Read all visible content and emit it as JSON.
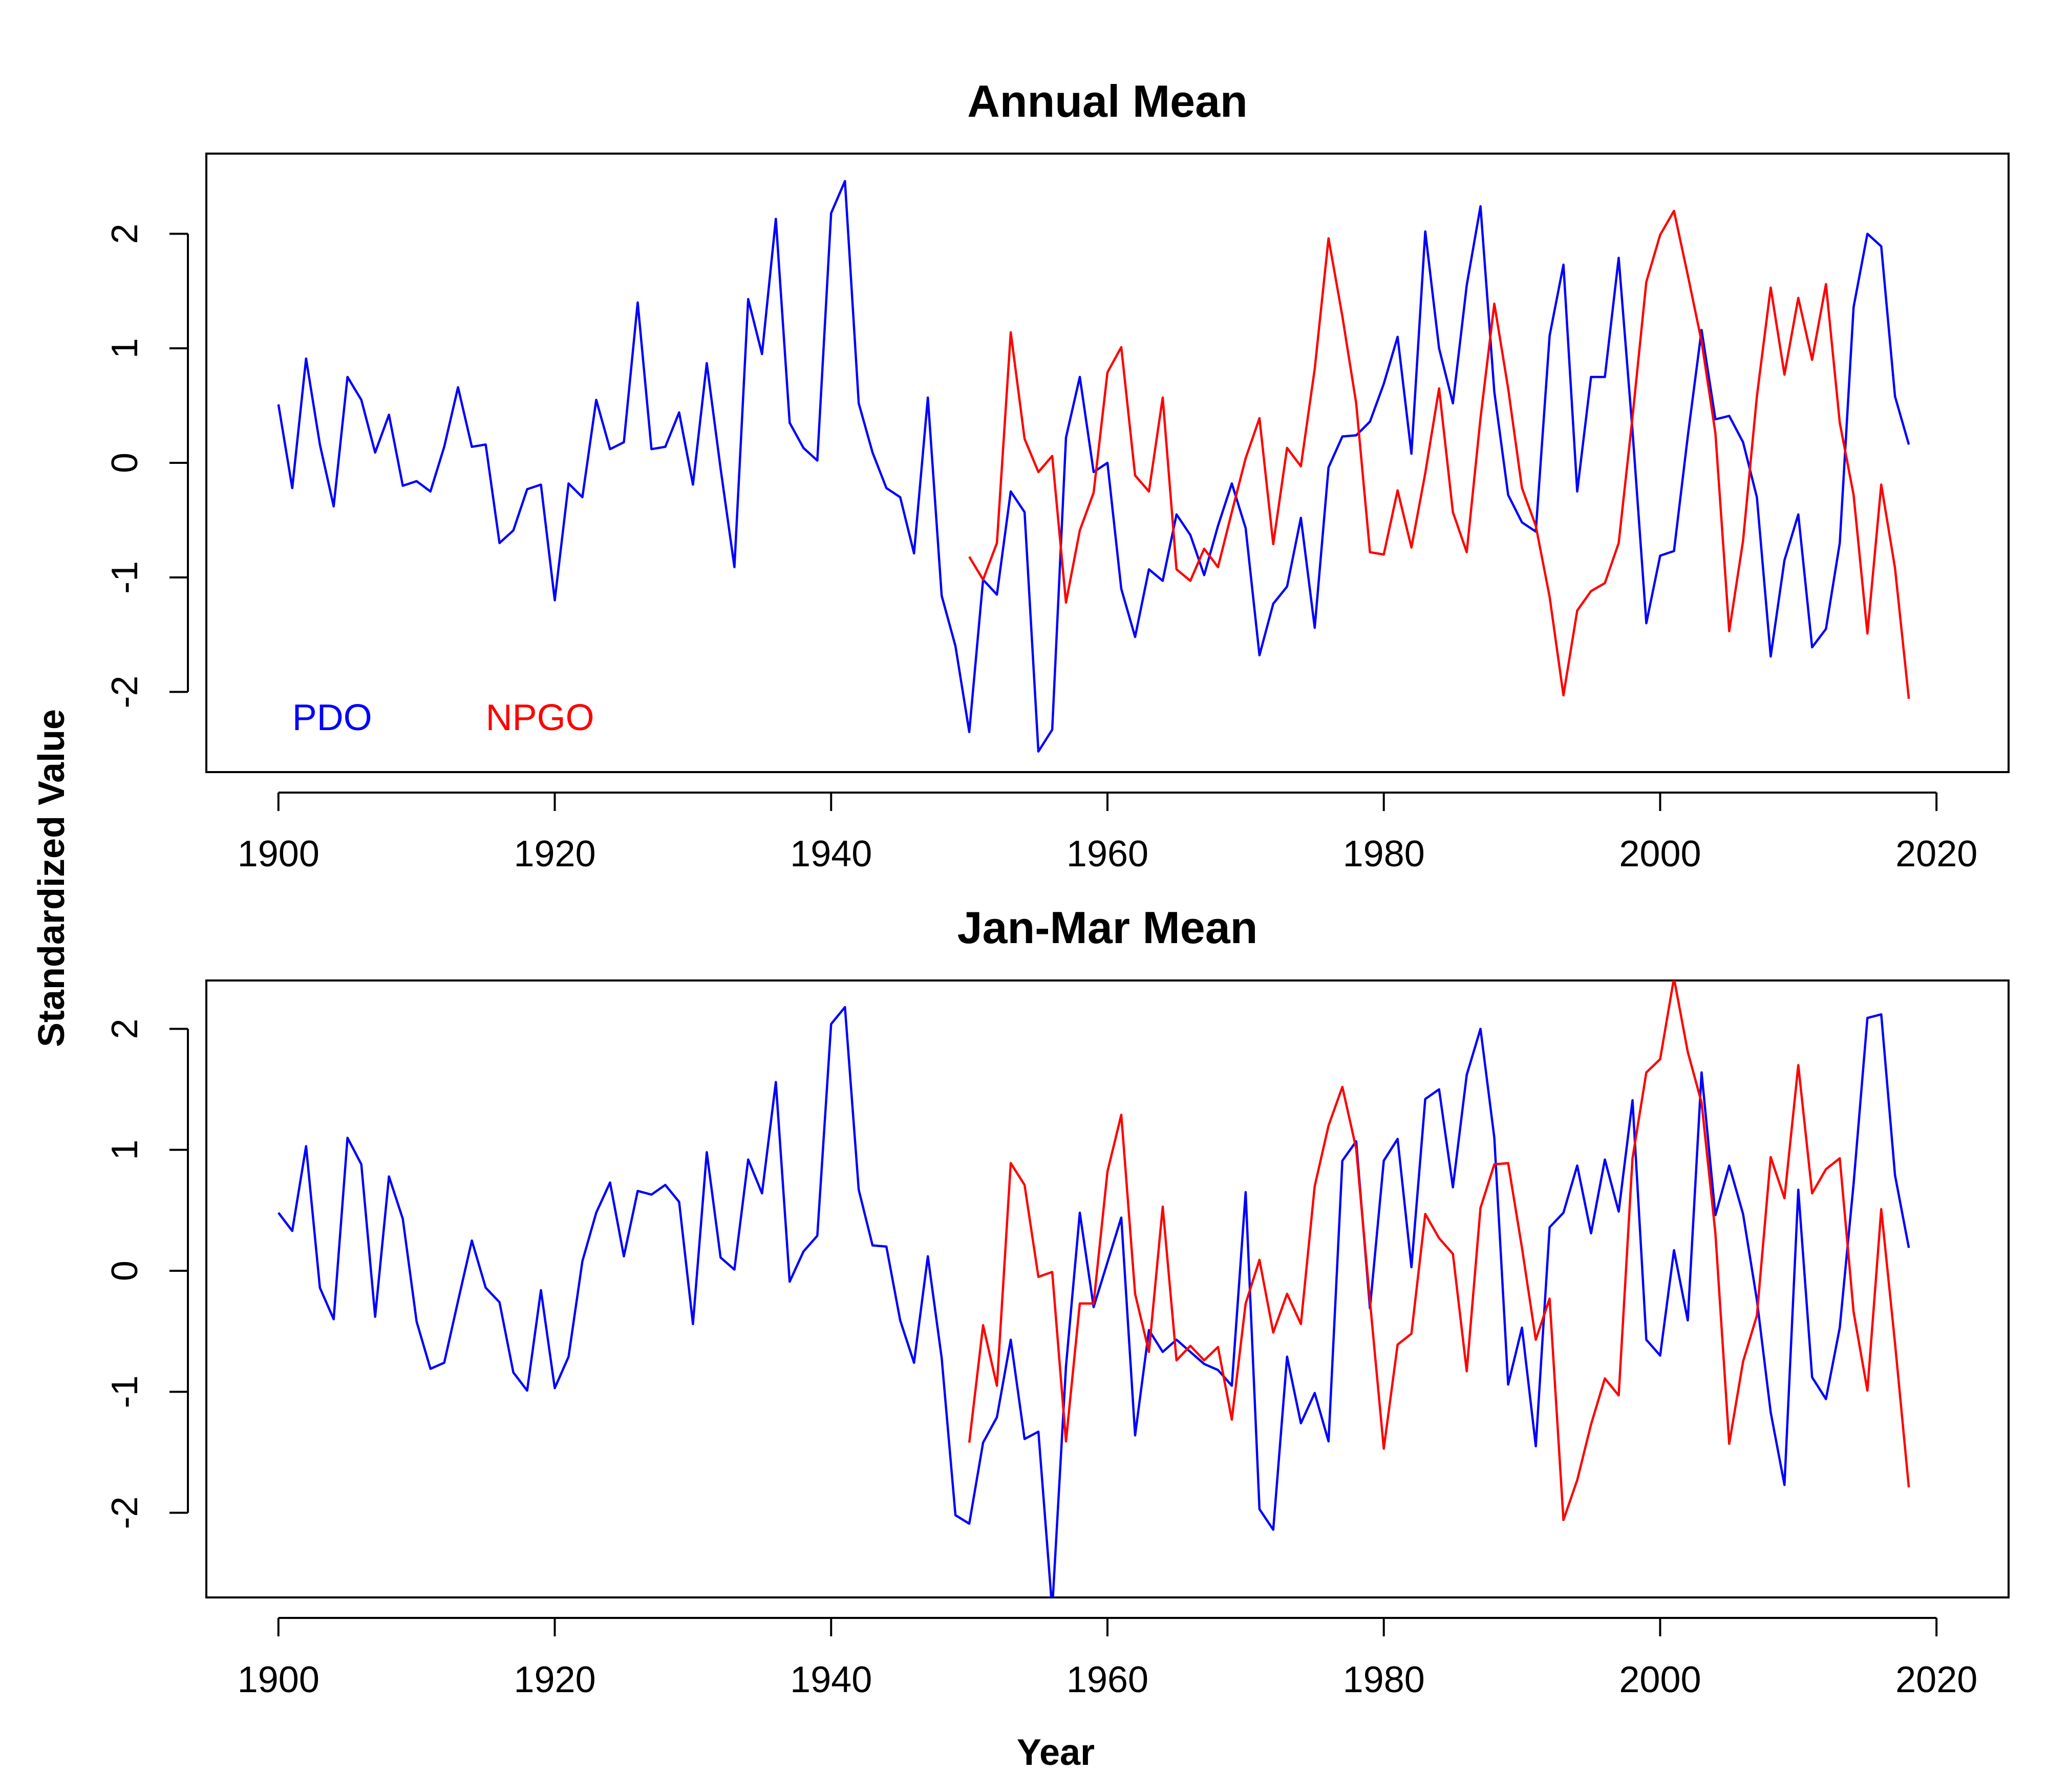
{
  "figure": {
    "ylabel": "Standardized Value",
    "xlabel": "Year",
    "colors": {
      "PDO": "#0000ff",
      "NPGO": "#ff0000",
      "axis": "#000000"
    }
  },
  "chart_data": [
    {
      "type": "line",
      "title": "Annual Mean",
      "xlabel": "",
      "ylabel": "Standardized Value",
      "xlim": [
        1900,
        2020
      ],
      "ylim": [
        -2.7,
        2.7
      ],
      "x_ticks": [
        1900,
        1920,
        1940,
        1960,
        1980,
        2000,
        2020
      ],
      "y_ticks": [
        -2,
        -1,
        0,
        1,
        2
      ],
      "y_tick_labels": [
        "-2",
        "-1",
        "0",
        "1",
        "2"
      ],
      "legend": {
        "placement": "bottom-left",
        "entries": [
          "PDO",
          "NPGO"
        ]
      },
      "series": [
        {
          "name": "PDO",
          "color": "#0000ff",
          "x_start": 1900,
          "values": [
            0.51,
            -0.22,
            0.91,
            0.16,
            -0.38,
            0.75,
            0.55,
            0.09,
            0.42,
            -0.2,
            -0.16,
            -0.25,
            0.14,
            0.66,
            0.14,
            0.16,
            -0.7,
            -0.59,
            -0.23,
            -0.19,
            -1.2,
            -0.18,
            -0.3,
            0.55,
            0.12,
            0.18,
            1.4,
            0.12,
            0.14,
            0.44,
            -0.19,
            0.87,
            -0.05,
            -0.91,
            1.43,
            0.95,
            2.13,
            0.35,
            0.13,
            0.02,
            2.18,
            2.46,
            0.52,
            0.09,
            -0.22,
            -0.3,
            -0.79,
            0.57,
            -1.16,
            -1.6,
            -2.35,
            -1.02,
            -1.15,
            -0.25,
            -0.43,
            -2.52,
            -2.33,
            0.22,
            0.75,
            -0.08,
            0.0,
            -1.1,
            -1.52,
            -0.93,
            -1.03,
            -0.45,
            -0.63,
            -0.98,
            -0.55,
            -0.18,
            -0.57,
            -1.68,
            -1.23,
            -1.08,
            -0.48,
            -1.44,
            -0.04,
            0.23,
            0.24,
            0.36,
            0.69,
            1.1,
            0.08,
            2.02,
            1.0,
            0.52,
            1.55,
            2.24,
            0.62,
            -0.28,
            -0.52,
            -0.6,
            1.11,
            1.73,
            -0.25,
            0.75,
            0.75,
            1.79,
            0.28,
            -1.4,
            -0.81,
            -0.77,
            0.23,
            1.16,
            0.38,
            0.41,
            0.18,
            -0.3,
            -1.69,
            -0.85,
            -0.45,
            -1.61,
            -1.45,
            -0.7,
            1.36,
            2.0,
            1.89,
            0.58,
            0.16
          ]
        },
        {
          "name": "NPGO",
          "color": "#ff0000",
          "x_start": 1950,
          "values": [
            -0.82,
            -1.02,
            -0.7,
            1.14,
            0.21,
            -0.08,
            0.06,
            -1.22,
            -0.59,
            -0.26,
            0.79,
            1.01,
            -0.11,
            -0.25,
            0.57,
            -0.93,
            -1.03,
            -0.75,
            -0.91,
            -0.43,
            0.04,
            0.39,
            -0.71,
            0.13,
            -0.03,
            0.82,
            1.96,
            1.28,
            0.52,
            -0.78,
            -0.8,
            -0.24,
            -0.74,
            -0.09,
            0.65,
            -0.43,
            -0.78,
            0.39,
            1.39,
            0.65,
            -0.22,
            -0.55,
            -1.17,
            -2.03,
            -1.29,
            -1.12,
            -1.05,
            -0.7,
            0.4,
            1.58,
            1.99,
            2.2,
            1.64,
            1.06,
            0.26,
            -1.47,
            -0.68,
            0.58,
            1.53,
            0.77,
            1.44,
            0.9,
            1.56,
            0.35,
            -0.28,
            -1.49,
            -0.19,
            -0.92,
            -2.06
          ]
        }
      ]
    },
    {
      "type": "line",
      "title": "Jan-Mar Mean",
      "xlabel": "Year",
      "ylabel": "Standardized Value",
      "xlim": [
        1900,
        2020
      ],
      "ylim": [
        -2.7,
        2.4
      ],
      "x_ticks": [
        1900,
        1920,
        1940,
        1960,
        1980,
        2000,
        2020
      ],
      "y_ticks": [
        -2,
        -1,
        0,
        1,
        2
      ],
      "y_tick_labels": [
        "-2",
        "-1",
        "0",
        "1",
        "2"
      ],
      "series": [
        {
          "name": "PDO",
          "color": "#0000ff",
          "x_start": 1900,
          "values": [
            0.48,
            0.33,
            1.03,
            -0.14,
            -0.4,
            1.1,
            0.88,
            -0.38,
            0.78,
            0.43,
            -0.42,
            -0.81,
            -0.76,
            -0.25,
            0.25,
            -0.14,
            -0.26,
            -0.84,
            -0.99,
            -0.16,
            -0.97,
            -0.71,
            0.08,
            0.48,
            0.73,
            0.12,
            0.66,
            0.63,
            0.71,
            0.57,
            -0.44,
            0.98,
            0.11,
            0.01,
            0.92,
            0.64,
            1.56,
            -0.09,
            0.16,
            0.29,
            2.04,
            2.18,
            0.67,
            0.21,
            0.2,
            -0.41,
            -0.76,
            0.12,
            -0.72,
            -2.02,
            -2.09,
            -1.42,
            -1.21,
            -0.57,
            -1.39,
            -1.33,
            -2.8,
            -0.79,
            0.48,
            -0.3,
            0.07,
            0.44,
            -1.36,
            -0.49,
            -0.67,
            -0.57,
            -0.67,
            -0.77,
            -0.82,
            -0.95,
            0.65,
            -1.97,
            -2.14,
            -0.71,
            -1.26,
            -1.01,
            -1.41,
            0.91,
            1.07,
            -0.31,
            0.91,
            1.09,
            0.03,
            1.42,
            1.5,
            0.69,
            1.62,
            2.0,
            1.1,
            -0.94,
            -0.47,
            -1.45,
            0.36,
            0.48,
            0.87,
            0.31,
            0.92,
            0.49,
            1.41,
            -0.57,
            -0.7,
            0.17,
            -0.41,
            1.64,
            0.46,
            0.87,
            0.47,
            -0.24,
            -1.17,
            -1.77,
            0.67,
            -0.88,
            -1.06,
            -0.47,
            0.72,
            2.09,
            2.12,
            0.79,
            0.19
          ]
        },
        {
          "name": "NPGO",
          "color": "#ff0000",
          "x_start": 1950,
          "values": [
            -1.42,
            -0.45,
            -0.95,
            0.89,
            0.71,
            -0.05,
            -0.01,
            -1.41,
            -0.27,
            -0.27,
            0.82,
            1.29,
            -0.19,
            -0.67,
            0.53,
            -0.74,
            -0.62,
            -0.74,
            -0.63,
            -1.23,
            -0.27,
            0.09,
            -0.51,
            -0.19,
            -0.44,
            0.7,
            1.2,
            1.52,
            1.01,
            -0.25,
            -1.47,
            -0.61,
            -0.52,
            0.47,
            0.27,
            0.14,
            -0.83,
            0.52,
            0.88,
            0.89,
            0.19,
            -0.57,
            -0.23,
            -2.06,
            -1.73,
            -1.27,
            -0.89,
            -1.03,
            0.93,
            1.64,
            1.75,
            2.42,
            1.81,
            1.39,
            0.31,
            -1.43,
            -0.75,
            -0.37,
            0.94,
            0.6,
            1.7,
            0.64,
            0.84,
            0.93,
            -0.34,
            -0.99,
            0.51,
            -0.6,
            -1.79
          ]
        }
      ]
    }
  ]
}
